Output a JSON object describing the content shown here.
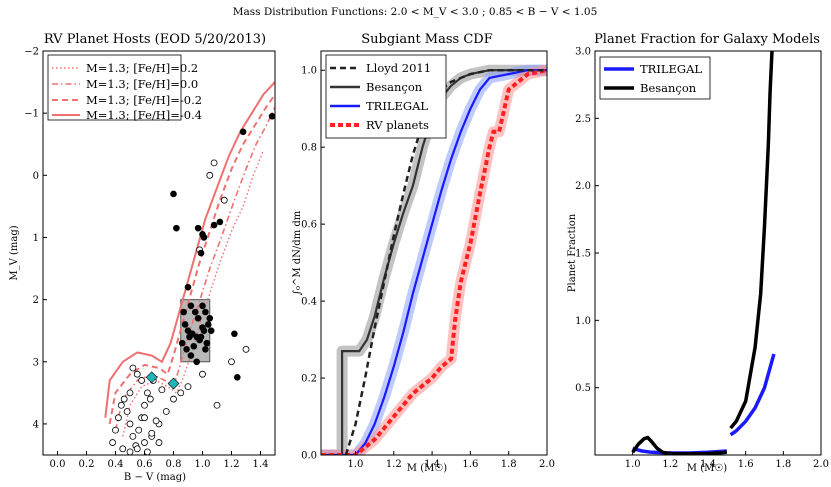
{
  "figure_title": "Mass Distribution Functions: 2.0 < M_V < 3.0 ; 0.85 < B − V < 1.05",
  "chart_data": [
    {
      "type": "scatter",
      "title": "RV Planet Hosts (EOD 5/20/2013)",
      "xlabel": "B − V (mag)",
      "ylabel": "M_V (mag)",
      "xlim": [
        -0.1,
        1.5
      ],
      "ylim": [
        4.5,
        -2
      ],
      "y_inverted": true,
      "xticks": [
        "0.0",
        "0.2",
        "0.4",
        "0.6",
        "0.8",
        "1.0",
        "1.2",
        "1.4"
      ],
      "yticks": [
        "−2",
        "−1",
        "0",
        "1",
        "2",
        "3",
        "4"
      ],
      "legend": [
        {
          "label": "M=1.3; [Fe/H]=0.2",
          "style": "dotted"
        },
        {
          "label": "M=1.3; [Fe/H]=0.0",
          "style": "dashdot"
        },
        {
          "label": "M=1.3; [Fe/H]=-0.2",
          "style": "dashed"
        },
        {
          "label": "M=1.3; [Fe/H]=-0.4",
          "style": "solid"
        }
      ],
      "selection_box": {
        "x": [
          0.85,
          1.05
        ],
        "y": [
          2.0,
          3.0
        ]
      },
      "tracks": [
        {
          "name": "[Fe/H]=0.2",
          "x": [
            0.45,
            0.5,
            0.58,
            0.68,
            0.76,
            0.82,
            0.86,
            0.92,
            0.98,
            1.05,
            1.12,
            1.2,
            1.28,
            1.35,
            1.42
          ],
          "y": [
            4.2,
            3.7,
            3.4,
            3.3,
            3.4,
            3.5,
            3.3,
            2.9,
            2.4,
            1.9,
            1.4,
            0.9,
            0.5,
            0.0,
            -0.4
          ]
        },
        {
          "name": "[Fe/H]=0.0",
          "x": [
            0.4,
            0.45,
            0.55,
            0.65,
            0.74,
            0.8,
            0.84,
            0.9,
            0.97,
            1.05,
            1.13,
            1.22,
            1.3,
            1.37,
            1.44,
            1.5
          ],
          "y": [
            4.1,
            3.6,
            3.3,
            3.2,
            3.3,
            3.4,
            3.1,
            2.6,
            2.1,
            1.5,
            1.0,
            0.4,
            -0.1,
            -0.5,
            -0.8,
            -1.1
          ]
        },
        {
          "name": "[Fe/H]=-0.2",
          "x": [
            0.36,
            0.4,
            0.5,
            0.6,
            0.7,
            0.76,
            0.8,
            0.86,
            0.92,
            0.98,
            1.05,
            1.12,
            1.2,
            1.28,
            1.36,
            1.44,
            1.5
          ],
          "y": [
            4.0,
            3.5,
            3.2,
            3.05,
            3.1,
            3.2,
            2.9,
            2.4,
            1.9,
            1.4,
            0.9,
            0.4,
            -0.1,
            -0.5,
            -0.8,
            -1.1,
            -1.3
          ]
        },
        {
          "name": "[Fe/H]=-0.4",
          "x": [
            0.33,
            0.36,
            0.45,
            0.55,
            0.65,
            0.72,
            0.78,
            0.84,
            0.9,
            0.96,
            1.02,
            1.1,
            1.18,
            1.26,
            1.34,
            1.42,
            1.5
          ],
          "y": [
            3.9,
            3.3,
            3.0,
            2.85,
            2.9,
            3.0,
            2.7,
            2.2,
            1.7,
            1.2,
            0.7,
            0.2,
            -0.3,
            -0.7,
            -1.0,
            -1.3,
            -1.5
          ]
        }
      ],
      "filled_points": {
        "x": [
          0.8,
          0.82,
          0.9,
          0.92,
          0.95,
          0.97,
          1.0,
          1.02,
          1.04,
          1.06,
          0.88,
          0.9,
          0.93,
          0.96,
          0.98,
          1.01,
          1.03,
          0.86,
          0.89,
          0.91,
          0.94,
          0.99,
          1.05,
          0.87,
          0.92,
          0.96,
          1.0,
          1.02,
          1.08,
          1.12,
          1.28,
          1.22,
          1.24,
          1.48,
          1.01,
          0.99,
          0.97,
          1.0
        ],
        "y": [
          0.3,
          0.85,
          1.8,
          2.1,
          2.2,
          2.3,
          2.1,
          2.2,
          2.4,
          2.5,
          2.4,
          2.5,
          2.55,
          2.6,
          2.65,
          2.5,
          2.7,
          2.7,
          2.8,
          2.6,
          2.75,
          2.6,
          2.3,
          2.2,
          2.9,
          3.0,
          2.45,
          2.8,
          0.8,
          0.75,
          -0.7,
          2.55,
          3.25,
          -0.95,
          1.0,
          1.25,
          0.85,
          0.95
        ]
      },
      "open_points": {
        "x": [
          0.38,
          0.4,
          0.42,
          0.44,
          0.46,
          0.48,
          0.5,
          0.52,
          0.54,
          0.56,
          0.58,
          0.6,
          0.62,
          0.64,
          0.66,
          0.45,
          0.5,
          0.55,
          0.6,
          0.65,
          0.7,
          0.75,
          0.8,
          0.85,
          0.9,
          1.0,
          1.1,
          1.2,
          1.3,
          0.5,
          0.55,
          0.6,
          0.65,
          0.7,
          0.52,
          0.58,
          0.62,
          0.68,
          0.72,
          1.05,
          1.08,
          1.15,
          0.98
        ],
        "y": [
          4.3,
          4.1,
          3.9,
          3.7,
          3.6,
          3.8,
          4.0,
          4.2,
          4.35,
          4.1,
          3.9,
          3.7,
          3.5,
          3.6,
          3.3,
          4.4,
          4.45,
          4.4,
          4.3,
          4.2,
          4.0,
          3.8,
          3.6,
          3.5,
          3.4,
          3.2,
          3.7,
          3.0,
          2.8,
          3.5,
          3.2,
          3.9,
          4.15,
          4.3,
          3.1,
          3.3,
          4.45,
          3.95,
          3.45,
          0.0,
          -0.2,
          0.4,
          1.2
        ]
      },
      "diamonds": {
        "x": [
          0.65,
          0.8
        ],
        "y": [
          3.25,
          3.35
        ]
      }
    },
    {
      "type": "line",
      "title": "Subgiant Mass CDF",
      "xlabel": "M (M☉)",
      "ylabel": "∫₀^M dN/dm dm",
      "xlim": [
        0.82,
        2.0
      ],
      "ylim": [
        0.0,
        1.05
      ],
      "xticks": [
        "1.0",
        "1.2",
        "1.4",
        "1.6",
        "1.8",
        "2.0"
      ],
      "yticks": [
        "0.0",
        "0.2",
        "0.4",
        "0.6",
        "0.8",
        "1.0"
      ],
      "legend": [
        {
          "label": "Lloyd 2011",
          "color": "#222222",
          "style": "dashed"
        },
        {
          "label": "Besançon",
          "color": "#333333",
          "style": "solid"
        },
        {
          "label": "TRILEGAL",
          "color": "#1a1aff",
          "style": "solid"
        },
        {
          "label": "RV planets",
          "color": "#ff2020",
          "style": "dotted"
        }
      ],
      "series": [
        {
          "name": "Lloyd 2011",
          "x": [
            0.95,
            1.0,
            1.05,
            1.1,
            1.15,
            1.2,
            1.25,
            1.3,
            1.35,
            1.4,
            1.45,
            1.5,
            1.6,
            1.7,
            1.8,
            1.9,
            2.0
          ],
          "y": [
            0.0,
            0.08,
            0.2,
            0.33,
            0.45,
            0.57,
            0.68,
            0.78,
            0.86,
            0.91,
            0.95,
            0.97,
            0.99,
            1.0,
            1.0,
            1.0,
            1.0
          ]
        },
        {
          "name": "Besançon",
          "x": [
            0.82,
            0.93,
            0.93,
            1.02,
            1.06,
            1.1,
            1.15,
            1.2,
            1.25,
            1.3,
            1.35,
            1.4,
            1.45,
            1.5,
            1.55,
            1.6,
            1.7,
            1.8,
            2.0
          ],
          "y": [
            0.0,
            0.0,
            0.27,
            0.27,
            0.3,
            0.36,
            0.46,
            0.55,
            0.63,
            0.7,
            0.8,
            0.88,
            0.93,
            0.96,
            0.98,
            0.99,
            1.0,
            1.0,
            1.0
          ]
        },
        {
          "name": "TRILEGAL",
          "x": [
            0.82,
            1.0,
            1.05,
            1.1,
            1.15,
            1.2,
            1.25,
            1.3,
            1.35,
            1.4,
            1.45,
            1.5,
            1.55,
            1.6,
            1.65,
            1.7,
            1.8,
            1.9,
            2.0
          ],
          "y": [
            0.0,
            0.0,
            0.03,
            0.08,
            0.15,
            0.23,
            0.32,
            0.42,
            0.51,
            0.6,
            0.69,
            0.77,
            0.84,
            0.9,
            0.95,
            0.98,
            0.99,
            1.0,
            1.0
          ]
        },
        {
          "name": "RV planets",
          "x": [
            0.82,
            1.0,
            1.05,
            1.1,
            1.15,
            1.2,
            1.25,
            1.3,
            1.35,
            1.4,
            1.45,
            1.5,
            1.52,
            1.55,
            1.6,
            1.65,
            1.7,
            1.72,
            1.75,
            1.8,
            1.85,
            1.9,
            2.0
          ],
          "y": [
            0.0,
            0.0,
            0.02,
            0.04,
            0.07,
            0.1,
            0.13,
            0.16,
            0.18,
            0.2,
            0.23,
            0.25,
            0.35,
            0.45,
            0.55,
            0.68,
            0.8,
            0.84,
            0.84,
            0.95,
            0.97,
            0.99,
            1.0
          ]
        }
      ]
    },
    {
      "type": "line",
      "title": "Planet Fraction for Galaxy Models",
      "xlabel": "M (M☉)",
      "ylabel": "Planet Fraction",
      "xlim": [
        0.8,
        2.0
      ],
      "ylim": [
        0.0,
        3.0
      ],
      "xticks": [
        "1.0",
        "1.2",
        "1.4",
        "1.6",
        "1.8",
        "2.0"
      ],
      "yticks": [
        "0.5",
        "1.0",
        "1.5",
        "2.0",
        "2.5",
        "3.0"
      ],
      "legend": [
        {
          "label": "TRILEGAL",
          "color": "#1a1aff",
          "style": "solid"
        },
        {
          "label": "Besançon",
          "color": "#000000",
          "style": "solid"
        }
      ],
      "series": [
        {
          "name": "TRILEGAL",
          "segments": [
            {
              "x": [
                1.0,
                1.02,
                1.05,
                1.1,
                1.2,
                1.3,
                1.4,
                1.5
              ],
              "y": [
                0.05,
                0.04,
                0.03,
                0.02,
                0.015,
                0.015,
                0.02,
                0.03
              ]
            },
            {
              "x": [
                1.52,
                1.55,
                1.6,
                1.65,
                1.7,
                1.75
              ],
              "y": [
                0.15,
                0.18,
                0.25,
                0.35,
                0.5,
                0.75
              ]
            }
          ]
        },
        {
          "name": "Besançon",
          "segments": [
            {
              "x": [
                1.0,
                1.03,
                1.06,
                1.08,
                1.1,
                1.13,
                1.16,
                1.2,
                1.3,
                1.4,
                1.5
              ],
              "y": [
                0.02,
                0.08,
                0.12,
                0.13,
                0.1,
                0.05,
                0.02,
                0.01,
                0.01,
                0.01,
                0.02
              ]
            },
            {
              "x": [
                1.52,
                1.55,
                1.6,
                1.65,
                1.68,
                1.7,
                1.72,
                1.73,
                1.74
              ],
              "y": [
                0.2,
                0.25,
                0.4,
                0.8,
                1.2,
                1.7,
                2.3,
                2.7,
                3.0
              ]
            }
          ]
        }
      ]
    }
  ]
}
